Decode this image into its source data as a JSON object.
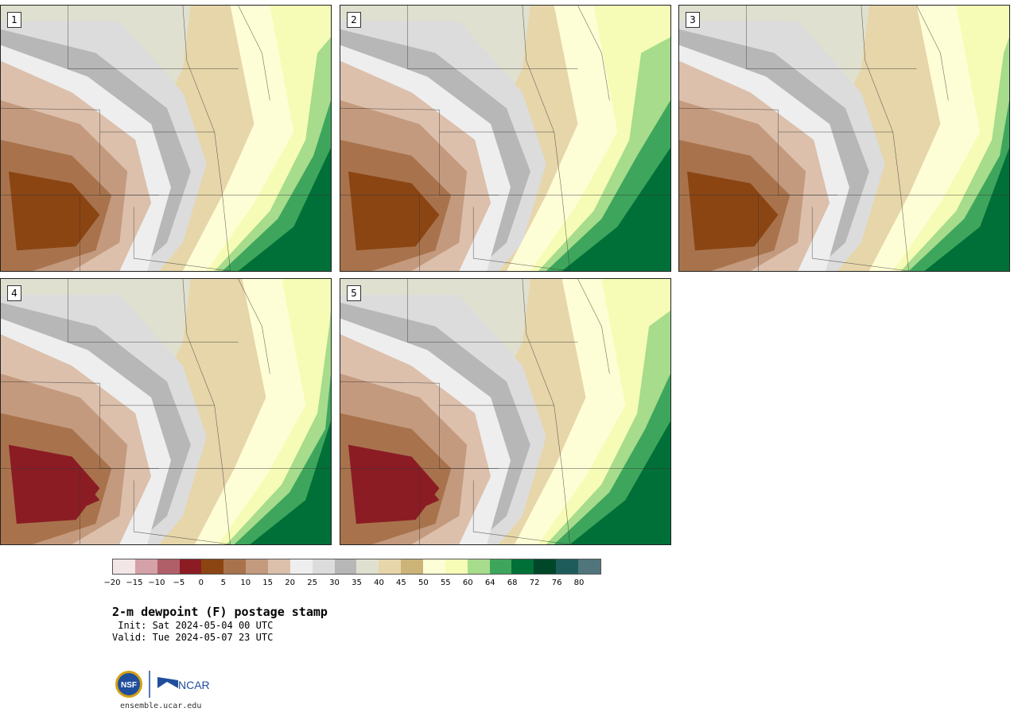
{
  "panels": [
    {
      "label": "1"
    },
    {
      "label": "2"
    },
    {
      "label": "3"
    },
    {
      "label": "4"
    },
    {
      "label": "5"
    }
  ],
  "colorbar": {
    "colors": [
      "#f3e6e6",
      "#d4a1a8",
      "#b05f68",
      "#8b1c24",
      "#8b4513",
      "#a8734c",
      "#c49a7e",
      "#dcc0ac",
      "#eeeeee",
      "#dcdcdc",
      "#b7b7b7",
      "#e0e0d0",
      "#e6d6aa",
      "#ccb478",
      "#fefed6",
      "#f6fcb6",
      "#a6dc8c",
      "#3ea65c",
      "#007038",
      "#00472a",
      "#1e5c5c",
      "#50767c"
    ],
    "tick_labels": [
      "−20",
      "−15",
      "−10",
      "−5",
      "0",
      "5",
      "10",
      "15",
      "20",
      "25",
      "30",
      "35",
      "40",
      "45",
      "50",
      "55",
      "60",
      "64",
      "68",
      "72",
      "76",
      "80"
    ]
  },
  "title": "2-m dewpoint (F) postage stamp",
  "init": " Init: Sat 2024-05-04 00 UTC",
  "valid": "Valid: Tue 2024-05-07 23 UTC",
  "logos": {
    "nsf": "NSF",
    "ncar": "NCAR"
  },
  "site": "ensemble.ucar.edu"
}
